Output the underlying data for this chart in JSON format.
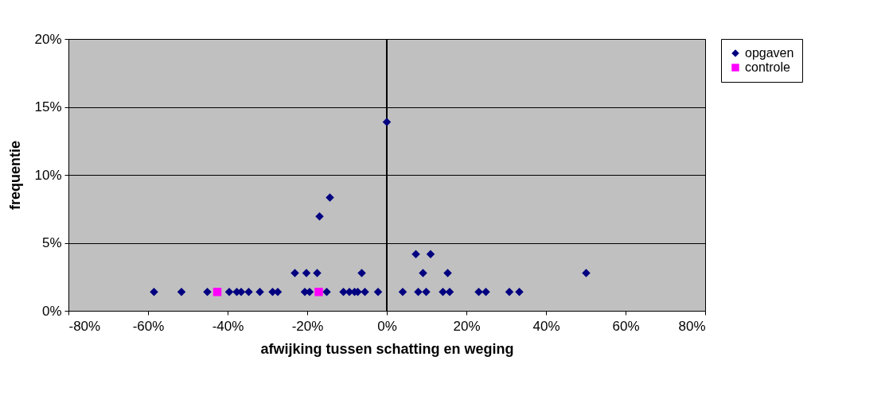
{
  "chart_data": {
    "type": "scatter",
    "xlabel": "afwijking tussen schatting en weging",
    "ylabel": "frequentie",
    "series": [
      {
        "name": "opgaven",
        "color": "#000080",
        "marker": "diamond",
        "x": [
          -58.5,
          -51.6,
          -45.1,
          -43.0,
          -39.6,
          -37.7,
          -36.6,
          -34.7,
          -31.9,
          -28.7,
          -27.4,
          -20.6,
          -19.4,
          -15.1,
          -10.9,
          -9.4,
          -8.1,
          -7.3,
          -5.5,
          -2.2,
          4.0,
          7.9,
          9.9,
          14.1,
          15.8,
          23.1,
          24.9,
          30.8,
          33.3,
          -23.1,
          -20.2,
          -17.5,
          -6.3,
          9.1,
          15.3,
          50.1,
          7.3,
          11.0,
          -16.9,
          -14.3,
          0.0
        ],
        "values": [
          1.39,
          1.39,
          1.39,
          null,
          1.39,
          1.39,
          1.39,
          1.39,
          1.39,
          1.39,
          1.39,
          1.39,
          1.39,
          1.39,
          1.39,
          1.39,
          1.39,
          1.39,
          1.39,
          1.39,
          1.39,
          1.39,
          1.39,
          1.39,
          1.39,
          1.39,
          1.39,
          1.39,
          1.39,
          2.78,
          2.78,
          2.78,
          2.78,
          2.78,
          2.78,
          2.78,
          4.17,
          4.17,
          6.94,
          8.33,
          13.89
        ]
      },
      {
        "name": "controle",
        "color": "#ff00ff",
        "marker": "square",
        "x": [
          -42.6,
          -17.1
        ],
        "values": [
          1.39,
          1.39
        ]
      }
    ],
    "xlim": [
      -80,
      80
    ],
    "xticks": [
      {
        "value": -80,
        "label": "-80%"
      },
      {
        "value": -60,
        "label": "-60%"
      },
      {
        "value": -40,
        "label": "-40%"
      },
      {
        "value": -20,
        "label": "-20%"
      },
      {
        "value": 0,
        "label": "0%"
      },
      {
        "value": 20,
        "label": "20%"
      },
      {
        "value": 40,
        "label": "40%"
      },
      {
        "value": 60,
        "label": "60%"
      },
      {
        "value": 80,
        "label": "80%"
      }
    ],
    "ylim": [
      0,
      20
    ],
    "yticks": [
      {
        "value": 0,
        "label": "0%"
      },
      {
        "value": 5,
        "label": "5%"
      },
      {
        "value": 10,
        "label": "10%"
      },
      {
        "value": 15,
        "label": "15%"
      },
      {
        "value": 20,
        "label": "20%"
      }
    ],
    "ref_lines": [
      {
        "axis": "x",
        "value": 0,
        "color": "#000000"
      }
    ],
    "grid": "y",
    "legend": "right"
  }
}
